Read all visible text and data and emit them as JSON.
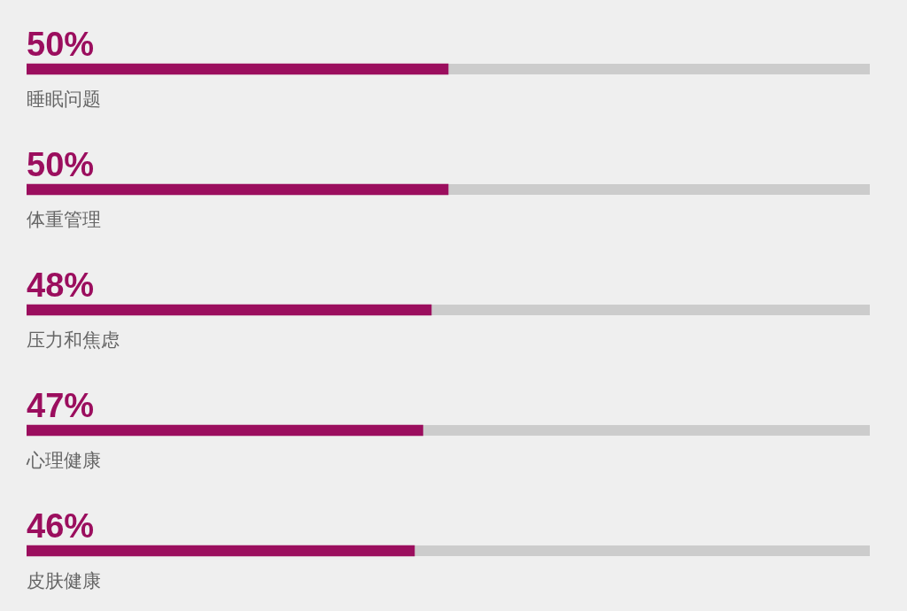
{
  "chart_data": {
    "type": "bar",
    "orientation": "horizontal",
    "categories": [
      "睡眠问题",
      "体重管理",
      "压力和焦虑",
      "心理健康",
      "皮肤健康"
    ],
    "values": [
      50,
      50,
      48,
      47,
      46
    ],
    "value_labels": [
      "50%",
      "50%",
      "48%",
      "47%",
      "46%"
    ],
    "color": "#9b0e5e",
    "xlim": [
      0,
      100
    ],
    "tick_labels": false
  }
}
